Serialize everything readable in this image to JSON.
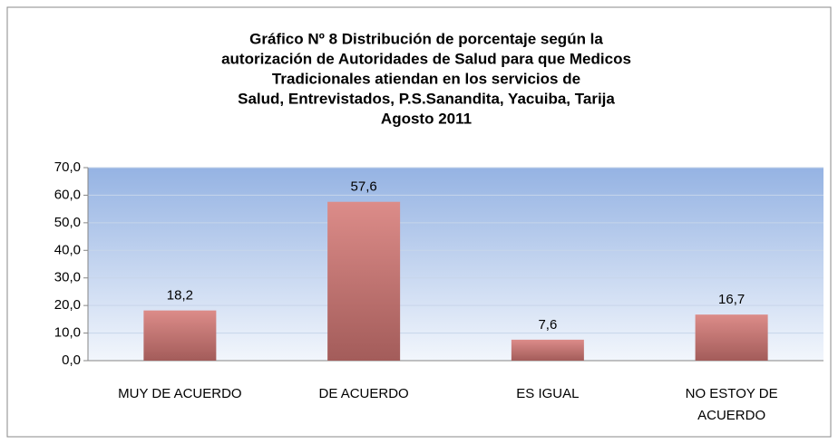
{
  "chart_data": {
    "type": "bar",
    "title": [
      "Gráfico Nº 8 Distribución de porcentaje  según la",
      "autorización de Autoridades de Salud para que Medicos",
      "Tradicionales atiendan en los servicios de",
      "Salud, Entrevistados,  P.S.Sanandita, Yacuiba, Tarija",
      "Agosto 2011"
    ],
    "categories": [
      "MUY DE ACUERDO",
      "DE ACUERDO",
      "ES IGUAL",
      "NO ESTOY DE ACUERDO"
    ],
    "values": [
      18.2,
      57.6,
      7.6,
      16.7
    ],
    "value_labels": [
      "18,2",
      "57,6",
      "7,6",
      "16,7"
    ],
    "color": "#c0504d",
    "ylim": [
      0,
      70
    ],
    "yticks": [
      {
        "value": 0,
        "label": "0,0"
      },
      {
        "value": 10,
        "label": "10,0"
      },
      {
        "value": 20,
        "label": "20,0"
      },
      {
        "value": 30,
        "label": "30,0"
      },
      {
        "value": 40,
        "label": "40,0"
      },
      {
        "value": 50,
        "label": "50,0"
      },
      {
        "value": 60,
        "label": "60,0"
      },
      {
        "value": 70,
        "label": "70,0"
      }
    ],
    "grid": true
  }
}
